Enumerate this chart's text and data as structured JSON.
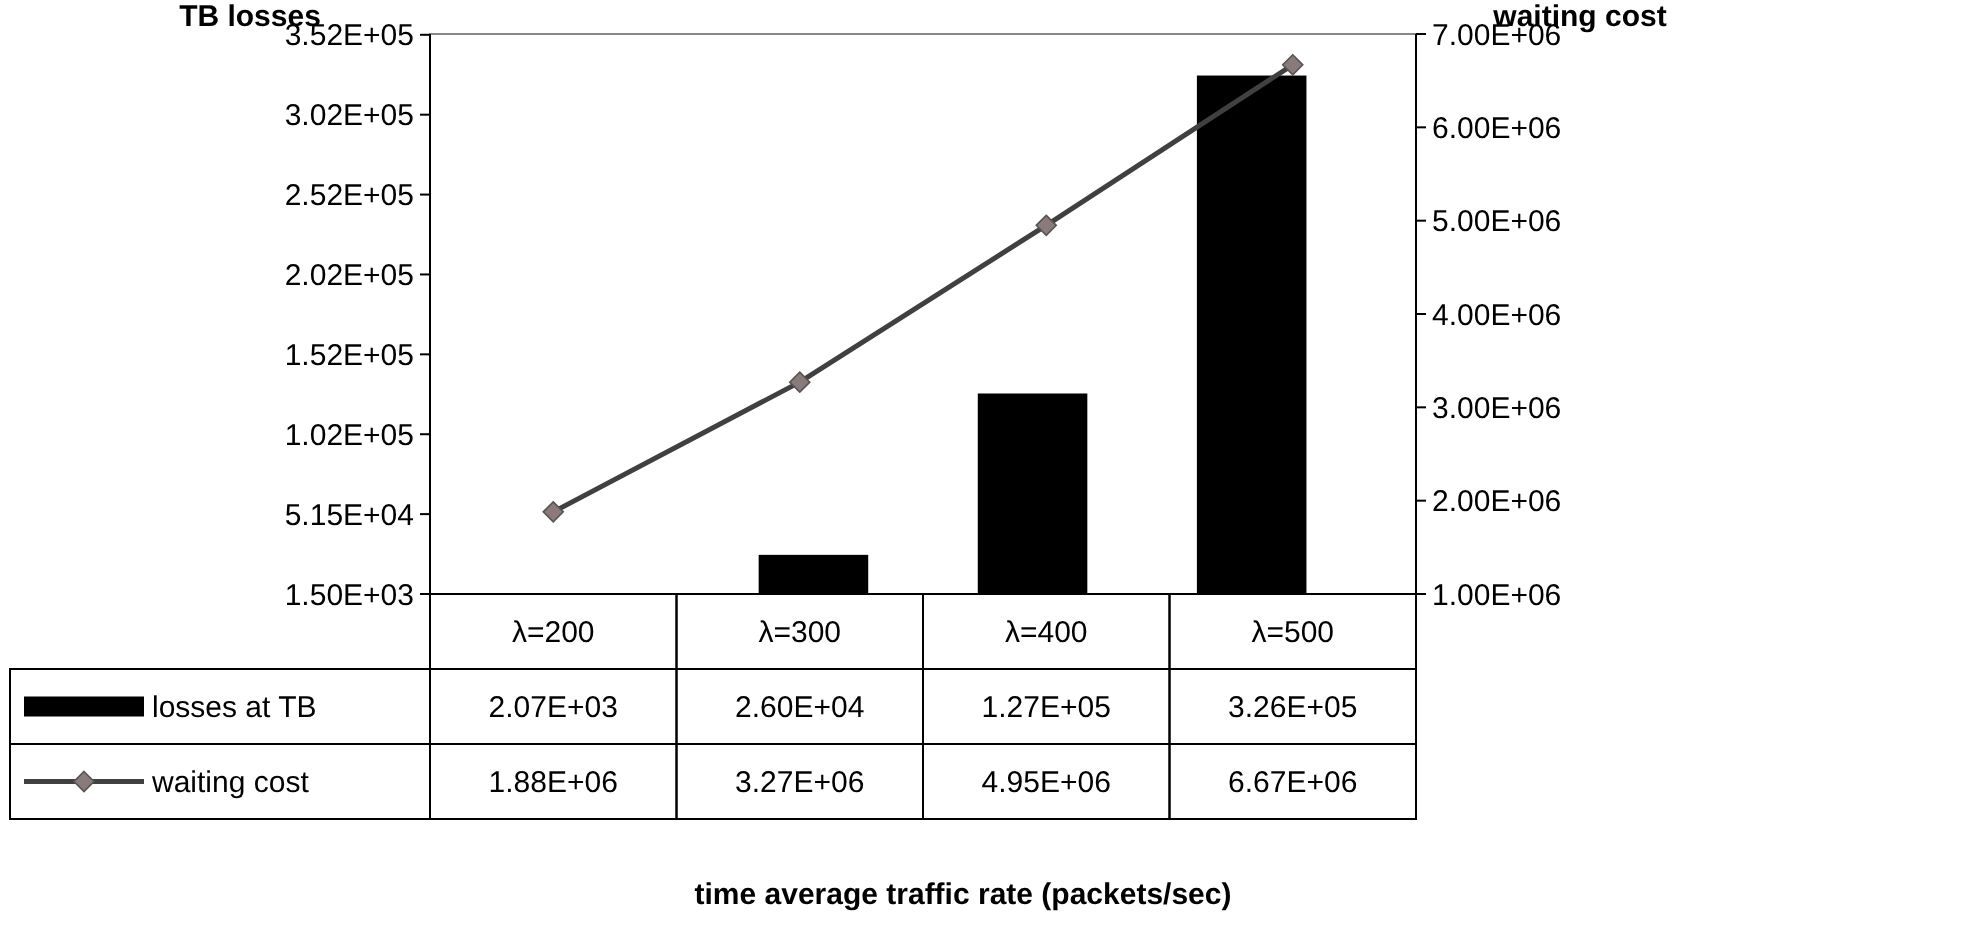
{
  "chart_data": {
    "type": "bar",
    "ylabel": "TB losses",
    "y2label": "waiting cost",
    "annotations": [
      "time average traffic rate (packets/sec)"
    ],
    "categories": [
      "λ=200",
      "λ=300",
      "λ=400",
      "λ=500"
    ],
    "series": [
      {
        "name": "losses at TB",
        "color": "#000000",
        "values": [
          2070,
          26000,
          127000,
          326000
        ],
        "value_labels": [
          "2.07E+03",
          "2.60E+04",
          "1.27E+05",
          "3.26E+05"
        ]
      },
      {
        "name": "waiting cost",
        "type": "line",
        "axis": "y2",
        "color": "#404040",
        "marker": "diamond",
        "values": [
          1880000,
          3270000,
          4950000,
          6670000
        ],
        "value_labels": [
          "1.88E+06",
          "3.27E+06",
          "4.95E+06",
          "6.67E+06"
        ]
      }
    ],
    "ylim": [
      1500,
      352000
    ],
    "yticks": [
      {
        "value": 1500,
        "label": "1.50E+03"
      },
      {
        "value": 51500,
        "label": "5.15E+04"
      },
      {
        "value": 101500,
        "label": "1.02E+05"
      },
      {
        "value": 151500,
        "label": "1.52E+05"
      },
      {
        "value": 201500,
        "label": "2.02E+05"
      },
      {
        "value": 251500,
        "label": "2.52E+05"
      },
      {
        "value": 301500,
        "label": "3.02E+05"
      },
      {
        "value": 351500,
        "label": "3.52E+05"
      }
    ],
    "y2lim": [
      1000000,
      7000000
    ],
    "y2ticks": [
      {
        "value": 1000000,
        "label": "1.00E+06"
      },
      {
        "value": 2000000,
        "label": "2.00E+06"
      },
      {
        "value": 3000000,
        "label": "3.00E+06"
      },
      {
        "value": 4000000,
        "label": "4.00E+06"
      },
      {
        "value": 5000000,
        "label": "5.00E+06"
      },
      {
        "value": 6000000,
        "label": "6.00E+06"
      },
      {
        "value": 7000000,
        "label": "7.00E+06"
      }
    ],
    "legend": "bottom",
    "grid": false
  }
}
